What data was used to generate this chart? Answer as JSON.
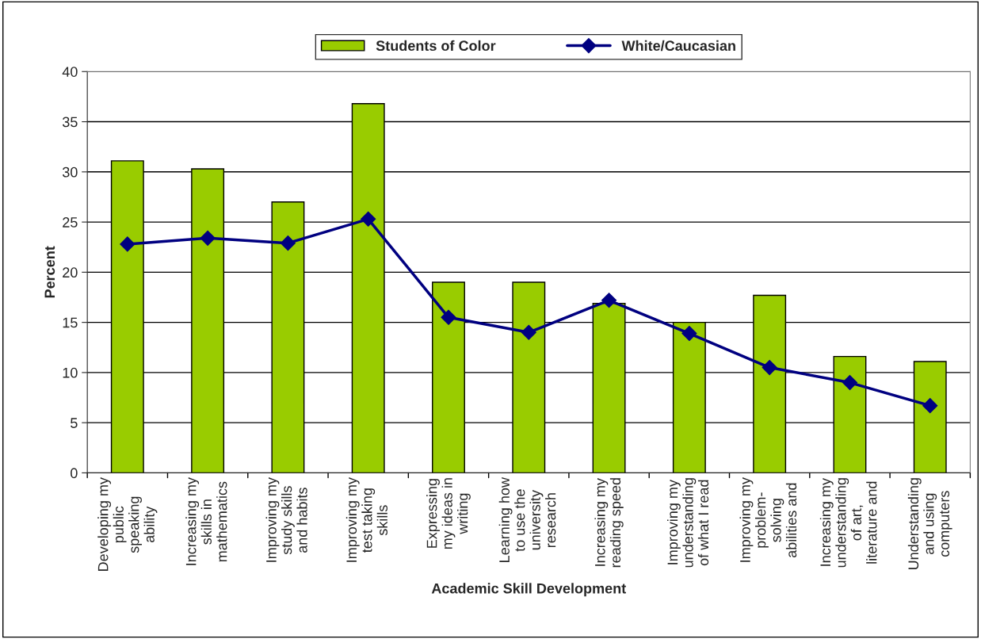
{
  "chart_data": {
    "type": "bar",
    "xlabel": "Academic Skill Development",
    "ylabel": "Percent",
    "categories": [
      "Developing my\npublic\nspeaking\nability",
      "Increasing my\nskills in\nmathematics",
      "Improving my\nstudy skills\nand habits",
      "Improving my\ntest taking\nskills",
      "Expressing\nmy ideas in\nwriting",
      "Learning how\nto use the\nuniversity\nresearch",
      "Increasing my\nreading speed",
      "Improving my\nunderstanding\nof what I read",
      "Improving my\nproblem-\nsolving\nabilities and",
      "Increasing my\nunderstanding\nof art,\nliterature and",
      "Understanding\nand using\ncomputers"
    ],
    "series": [
      {
        "name": "Students of Color",
        "color": "#99cc00",
        "values": [
          31.1,
          30.3,
          27.0,
          36.8,
          19.0,
          19.0,
          16.9,
          15.0,
          17.7,
          11.6,
          11.1
        ]
      },
      {
        "name": "White/Caucasian",
        "type": "line",
        "color": "#000080",
        "marker": "diamond",
        "values": [
          22.8,
          23.4,
          22.9,
          25.3,
          15.5,
          14.0,
          17.2,
          13.9,
          10.5,
          9.0,
          6.7
        ]
      }
    ],
    "ylim": [
      0,
      40
    ],
    "yticks": [
      0,
      5,
      10,
      15,
      20,
      25,
      30,
      35,
      40
    ],
    "grid": "y",
    "legend": "top"
  }
}
